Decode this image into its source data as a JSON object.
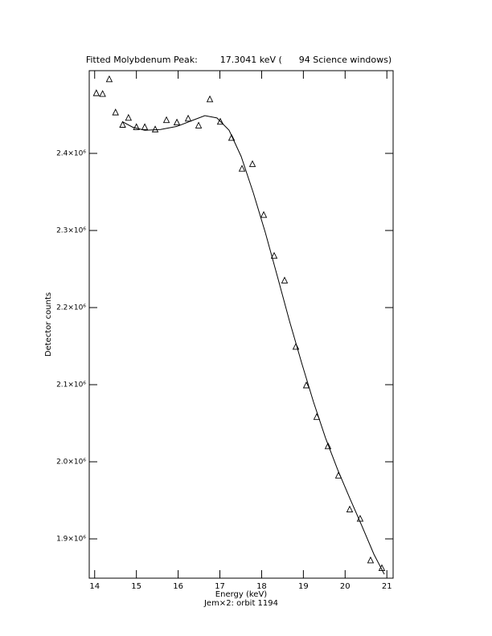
{
  "chart_data": {
    "type": "scatter",
    "title": "Fitted Molybdenum Peak:        17.3041 keV (      94 Science windows)",
    "x_label": "Energy (keV)",
    "subtitle": "Jem×2: orbit 1194",
    "y_label": "Detector counts",
    "xlim": [
      13.87,
      21.15
    ],
    "ylim": [
      1849000,
      2507300
    ],
    "xticks": [
      14,
      15,
      16,
      17,
      18,
      19,
      20,
      21
    ],
    "yticks": [
      {
        "value": 1900000,
        "label": "1.9×10⁶"
      },
      {
        "value": 2000000,
        "label": "2.0×10⁶"
      },
      {
        "value": 2100000,
        "label": "2.1×10⁶"
      },
      {
        "value": 2200000,
        "label": "2.2×10⁶"
      },
      {
        "value": 2300000,
        "label": "2.3×10⁶"
      },
      {
        "value": 2400000,
        "label": "2.4×10⁶"
      }
    ],
    "series": [
      {
        "marker": "triangle",
        "color": "#000000",
        "x": [
          14.04,
          14.19,
          14.35,
          14.5,
          14.67,
          14.81,
          15.0,
          15.2,
          15.45,
          15.72,
          15.97,
          16.24,
          16.49,
          16.76,
          17.01,
          17.28,
          17.53,
          17.78,
          18.05,
          18.3,
          18.55,
          18.82,
          19.07,
          19.32,
          19.59,
          19.84,
          20.11,
          20.36,
          20.61,
          20.88
        ],
        "values": [
          2478000,
          2477000,
          2496000,
          2453000,
          2437000,
          2446000,
          2434000,
          2434000,
          2431000,
          2443000,
          2440000,
          2445000,
          2436000,
          2470000,
          2441000,
          2420000,
          2380000,
          2386000,
          2320000,
          2267000,
          2235000,
          2149000,
          2099000,
          2058000,
          2020000,
          1982000,
          1938000,
          1926000,
          1872000,
          1862000
        ]
      },
      {
        "marker": "line",
        "color": "#000000",
        "x": [
          14.67,
          14.91,
          15.2,
          15.58,
          15.97,
          16.35,
          16.64,
          16.93,
          17.22,
          17.51,
          17.8,
          18.09,
          18.38,
          18.67,
          18.96,
          19.24,
          19.53,
          19.82,
          20.11,
          20.4,
          20.69,
          20.94
        ],
        "values": [
          2441000,
          2434000,
          2430000,
          2431000,
          2435000,
          2443000,
          2449000,
          2446000,
          2430000,
          2396000,
          2349000,
          2297000,
          2240000,
          2182000,
          2128000,
          2078000,
          2031000,
          1990000,
          1953000,
          1917000,
          1880000,
          1854000
        ]
      }
    ]
  }
}
